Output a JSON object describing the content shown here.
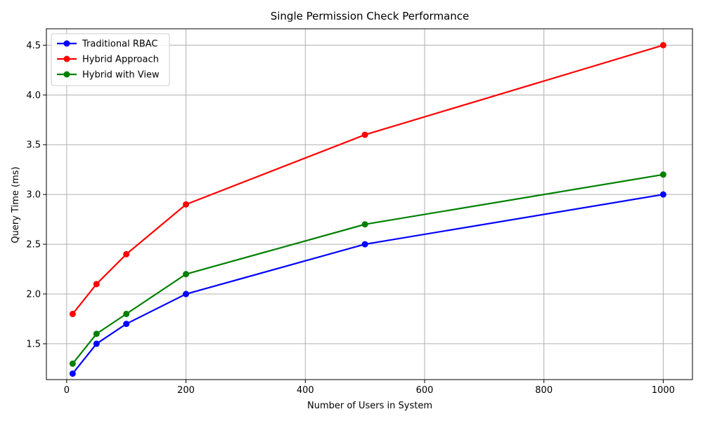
{
  "chart_data": {
    "type": "line",
    "title": "Single Permission Check Performance",
    "xlabel": "Number of Users in System",
    "ylabel": "Query Time (ms)",
    "x": [
      10,
      50,
      100,
      200,
      500,
      1000
    ],
    "xlim": [
      -34,
      1049
    ],
    "ylim": [
      1.14,
      4.665
    ],
    "xticks": [
      0,
      200,
      400,
      600,
      800,
      1000
    ],
    "xtick_labels": [
      "0",
      "200",
      "400",
      "600",
      "800",
      "1000"
    ],
    "yticks": [
      1.5,
      2.0,
      2.5,
      3.0,
      3.5,
      4.0,
      4.5
    ],
    "ytick_labels": [
      "1.5",
      "2.0",
      "2.5",
      "3.0",
      "3.5",
      "4.0",
      "4.5"
    ],
    "grid": true,
    "legend_position": "top-left",
    "series": [
      {
        "name": "Traditional RBAC",
        "color": "#0000ff",
        "values": [
          1.2,
          1.5,
          1.7,
          2.0,
          2.5,
          3.0
        ]
      },
      {
        "name": "Hybrid Approach",
        "color": "#ff0000",
        "values": [
          1.8,
          2.1,
          2.4,
          2.9,
          3.6,
          4.5
        ]
      },
      {
        "name": "Hybrid with View",
        "color": "#008000",
        "values": [
          1.3,
          1.6,
          1.8,
          2.2,
          2.7,
          3.2
        ]
      }
    ]
  }
}
